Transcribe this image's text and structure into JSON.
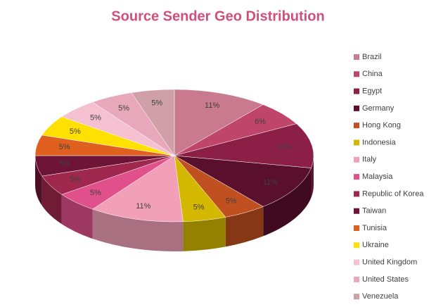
{
  "chart_data": {
    "type": "pie",
    "title": "Source Sender Geo Distribution",
    "categories": [
      "Brazil",
      "China",
      "Egypt",
      "Germany",
      "Hong Kong",
      "Indonesia",
      "Italy",
      "Malaysia",
      "Republic of Korea",
      "Taiwan",
      "Tunisia",
      "Ukraine",
      "United Kingdom",
      "United States",
      "Venezuela"
    ],
    "values": [
      11,
      6,
      11,
      11,
      5,
      5,
      11,
      5,
      5,
      5,
      5,
      5,
      5,
      5,
      5
    ],
    "value_labels": [
      "11%",
      "6%",
      "11%",
      "11%",
      "5%",
      "5%",
      "11%",
      "5%",
      "5%",
      "5%",
      "5%",
      "5%",
      "5%",
      "5%",
      "5%"
    ],
    "colors": [
      "#c97a8e",
      "#c0456b",
      "#8b1f45",
      "#5a0f2d",
      "#c0501f",
      "#d4b800",
      "#f2a0b8",
      "#e0508a",
      "#a0284e",
      "#6e1436",
      "#e06020",
      "#ffe000",
      "#f5c0d0",
      "#e8a8bc",
      "#d0a0a8"
    ],
    "legend": "right"
  }
}
